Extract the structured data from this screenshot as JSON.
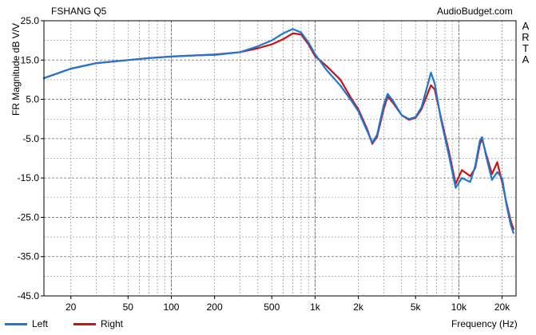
{
  "header": {
    "left_title": "FSHANG Q5",
    "right_title": "AudioBudget.com"
  },
  "side_text": "ARTA",
  "chart_data": {
    "type": "line",
    "xscale": "log",
    "xlim": [
      13,
      25000
    ],
    "ylim": [
      -45,
      25
    ],
    "xlabel": "Frequency (Hz)",
    "ylabel": "FR Magnitude dB V/V",
    "grid": true,
    "legend_position": "bottom-left",
    "x_ticks": [
      {
        "value": 20,
        "label": "20"
      },
      {
        "value": 50,
        "label": "50"
      },
      {
        "value": 100,
        "label": "100"
      },
      {
        "value": 200,
        "label": "200"
      },
      {
        "value": 500,
        "label": "500"
      },
      {
        "value": 1000,
        "label": "1k"
      },
      {
        "value": 2000,
        "label": "2k"
      },
      {
        "value": 5000,
        "label": "5k"
      },
      {
        "value": 10000,
        "label": "10k"
      },
      {
        "value": 20000,
        "label": "20k"
      }
    ],
    "y_ticks": [
      {
        "value": 25,
        "label": "25.0"
      },
      {
        "value": 15,
        "label": "15.0"
      },
      {
        "value": 5,
        "label": "5.0"
      },
      {
        "value": -5,
        "label": "-5.0"
      },
      {
        "value": -15,
        "label": "-15.0"
      },
      {
        "value": -25,
        "label": "-25.0"
      },
      {
        "value": -35,
        "label": "-35.0"
      },
      {
        "value": -45,
        "label": "-45.0"
      }
    ],
    "series": [
      {
        "name": "Left",
        "color": "#1f77d4",
        "points": [
          [
            13,
            10.4
          ],
          [
            20,
            12.8
          ],
          [
            30,
            14.2
          ],
          [
            50,
            15.0
          ],
          [
            70,
            15.5
          ],
          [
            100,
            15.9
          ],
          [
            150,
            16.2
          ],
          [
            200,
            16.3
          ],
          [
            300,
            17.0
          ],
          [
            400,
            18.5
          ],
          [
            500,
            20.0
          ],
          [
            600,
            21.8
          ],
          [
            700,
            22.9
          ],
          [
            800,
            22.0
          ],
          [
            900,
            19.5
          ],
          [
            1000,
            16.5
          ],
          [
            1200,
            12.5
          ],
          [
            1500,
            8.5
          ],
          [
            1800,
            4.5
          ],
          [
            2000,
            2.0
          ],
          [
            2300,
            -3.0
          ],
          [
            2500,
            -6.0
          ],
          [
            2700,
            -4.0
          ],
          [
            3000,
            3.5
          ],
          [
            3200,
            6.4
          ],
          [
            3500,
            4.5
          ],
          [
            4000,
            1.0
          ],
          [
            4500,
            0.0
          ],
          [
            5000,
            0.5
          ],
          [
            5500,
            3.0
          ],
          [
            6000,
            8.0
          ],
          [
            6400,
            11.8
          ],
          [
            6800,
            9.0
          ],
          [
            7500,
            0.0
          ],
          [
            8500,
            -9.0
          ],
          [
            9500,
            -17.5
          ],
          [
            10500,
            -15.0
          ],
          [
            12000,
            -16.0
          ],
          [
            13000,
            -12.0
          ],
          [
            14000,
            -5.5
          ],
          [
            14500,
            -4.6
          ],
          [
            15500,
            -9.5
          ],
          [
            17000,
            -15.5
          ],
          [
            18500,
            -13.5
          ],
          [
            20000,
            -15.0
          ],
          [
            21500,
            -22.0
          ],
          [
            23000,
            -27.0
          ],
          [
            24000,
            -29.0
          ]
        ]
      },
      {
        "name": "Right",
        "color": "#cc1111",
        "points": [
          [
            13,
            10.4
          ],
          [
            20,
            12.8
          ],
          [
            30,
            14.2
          ],
          [
            50,
            15.0
          ],
          [
            70,
            15.5
          ],
          [
            100,
            15.9
          ],
          [
            150,
            16.2
          ],
          [
            200,
            16.4
          ],
          [
            300,
            17.0
          ],
          [
            400,
            18.0
          ],
          [
            500,
            19.0
          ],
          [
            600,
            20.3
          ],
          [
            700,
            21.8
          ],
          [
            800,
            21.5
          ],
          [
            900,
            19.0
          ],
          [
            1000,
            16.0
          ],
          [
            1200,
            13.5
          ],
          [
            1500,
            10.0
          ],
          [
            1800,
            5.0
          ],
          [
            2000,
            2.5
          ],
          [
            2300,
            -2.5
          ],
          [
            2500,
            -6.3
          ],
          [
            2700,
            -4.5
          ],
          [
            3000,
            2.5
          ],
          [
            3200,
            5.8
          ],
          [
            3500,
            4.0
          ],
          [
            4000,
            1.0
          ],
          [
            4500,
            -0.2
          ],
          [
            5000,
            0.3
          ],
          [
            5500,
            2.5
          ],
          [
            6000,
            6.0
          ],
          [
            6400,
            8.6
          ],
          [
            6800,
            7.5
          ],
          [
            7500,
            0.5
          ],
          [
            8500,
            -8.0
          ],
          [
            9500,
            -16.5
          ],
          [
            10500,
            -13.0
          ],
          [
            12000,
            -14.5
          ],
          [
            13000,
            -12.5
          ],
          [
            14000,
            -6.5
          ],
          [
            14500,
            -5.0
          ],
          [
            15500,
            -9.0
          ],
          [
            17000,
            -14.0
          ],
          [
            18500,
            -11.0
          ],
          [
            20000,
            -16.0
          ],
          [
            21500,
            -21.5
          ],
          [
            23000,
            -26.0
          ],
          [
            24000,
            -28.0
          ]
        ]
      }
    ]
  }
}
